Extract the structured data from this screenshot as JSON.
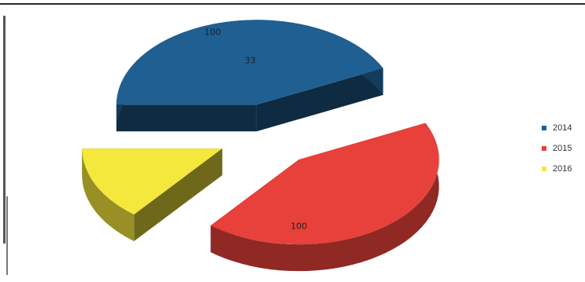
{
  "chart_data": {
    "type": "pie",
    "style": "3d-exploded",
    "categories": [
      "2014",
      "2015",
      "2016"
    ],
    "values": [
      100,
      100,
      33
    ],
    "data_labels": [
      "100",
      "100",
      "33"
    ],
    "colors": [
      "#1f5f92",
      "#e8403a",
      "#f5e83c"
    ],
    "title": "",
    "legend_position": "right"
  }
}
